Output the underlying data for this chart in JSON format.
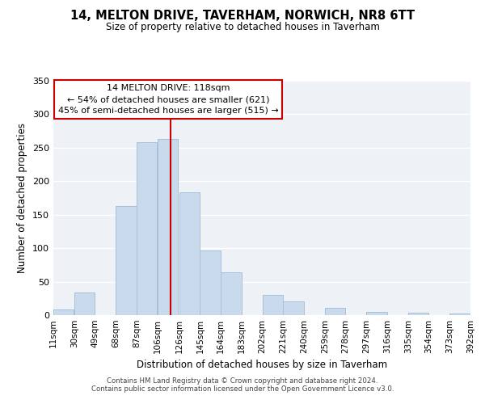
{
  "title": "14, MELTON DRIVE, TAVERHAM, NORWICH, NR8 6TT",
  "subtitle": "Size of property relative to detached houses in Taverham",
  "xlabel": "Distribution of detached houses by size in Taverham",
  "ylabel": "Number of detached properties",
  "bar_color": "#c8daeb",
  "bar_edge_color": "#a8c0d8",
  "vline_x": 118,
  "vline_color": "#cc0000",
  "annotation_title": "14 MELTON DRIVE: 118sqm",
  "annotation_line1": "← 54% of detached houses are smaller (621)",
  "annotation_line2": "45% of semi-detached houses are larger (515) →",
  "annotation_box_color": "#ffffff",
  "annotation_box_edge": "#cc0000",
  "bins": [
    11,
    30,
    49,
    68,
    87,
    106,
    126,
    145,
    164,
    183,
    202,
    221,
    240,
    259,
    278,
    297,
    316,
    335,
    354,
    373,
    392
  ],
  "bin_labels": [
    "11sqm",
    "30sqm",
    "49sqm",
    "68sqm",
    "87sqm",
    "106sqm",
    "126sqm",
    "145sqm",
    "164sqm",
    "183sqm",
    "202sqm",
    "221sqm",
    "240sqm",
    "259sqm",
    "278sqm",
    "297sqm",
    "316sqm",
    "335sqm",
    "354sqm",
    "373sqm",
    "392sqm"
  ],
  "counts": [
    9,
    34,
    0,
    163,
    258,
    263,
    184,
    97,
    64,
    0,
    30,
    21,
    0,
    11,
    0,
    5,
    0,
    4,
    0,
    2
  ],
  "ylim": [
    0,
    350
  ],
  "yticks": [
    0,
    50,
    100,
    150,
    200,
    250,
    300,
    350
  ],
  "footer1": "Contains HM Land Registry data © Crown copyright and database right 2024.",
  "footer2": "Contains public sector information licensed under the Open Government Licence v3.0.",
  "bg_color": "#eef2f7"
}
